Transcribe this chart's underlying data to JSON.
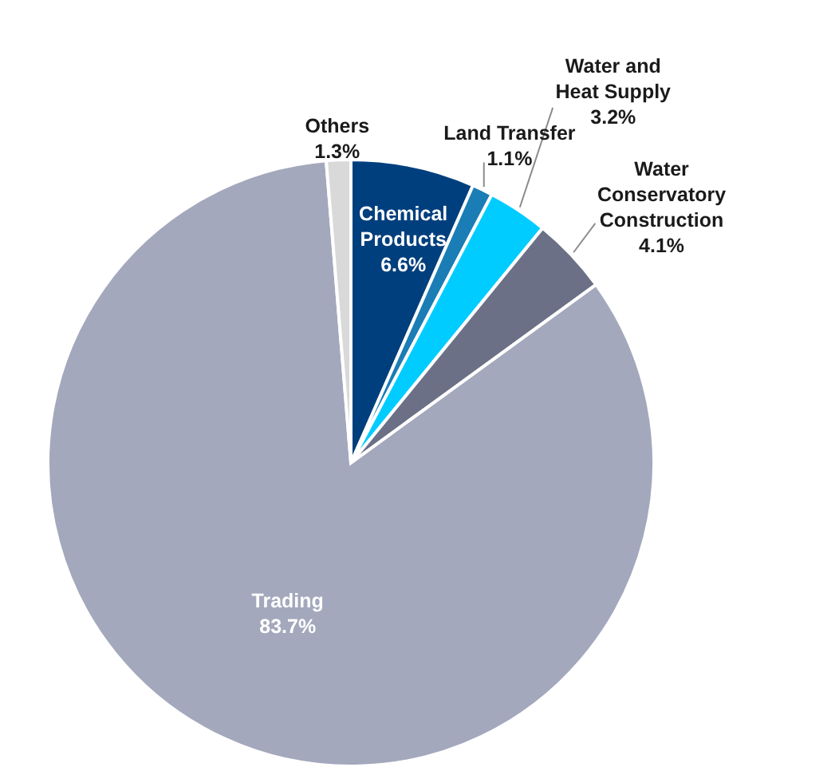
{
  "chart_data": {
    "type": "pie",
    "categories": [
      "Chemical Products",
      "Land Transfer",
      "Water and Heat Supply",
      "Water Conservatory Construction",
      "Trading",
      "Others"
    ],
    "values": [
      6.6,
      1.1,
      3.2,
      4.1,
      83.7,
      1.3
    ],
    "colors": [
      "#003f7d",
      "#1b7db5",
      "#00ccff",
      "#6b7086",
      "#a3a8bc",
      "#d9d9d9"
    ],
    "value_labels": [
      "6.6%",
      "1.1%",
      "3.2%",
      "4.1%",
      "83.7%",
      "1.3%"
    ]
  }
}
